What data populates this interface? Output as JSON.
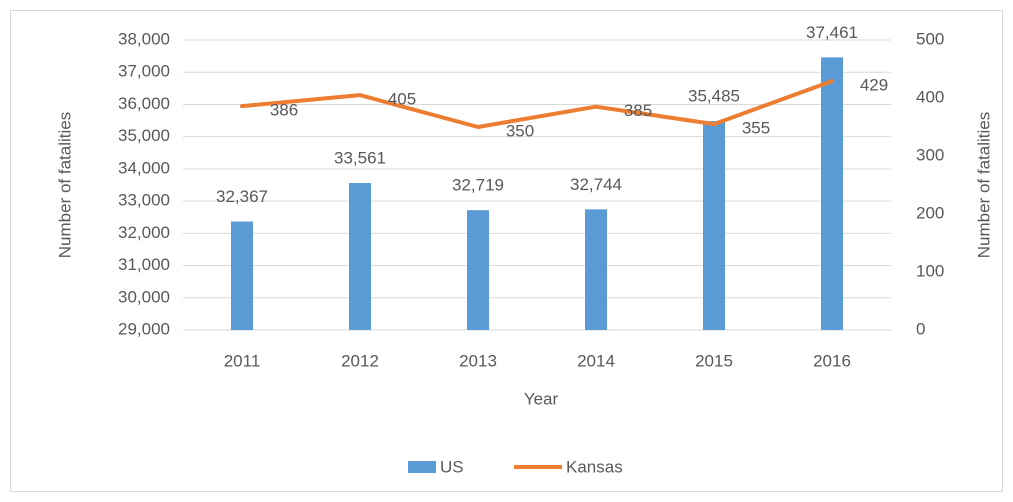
{
  "chart_data": {
    "type": "bar",
    "categories": [
      "2011",
      "2012",
      "2013",
      "2014",
      "2015",
      "2016"
    ],
    "x_label": "Year",
    "y_label": "Number of fatalities",
    "y2_label": "Number of fatalities",
    "ylim": [
      29000,
      38000
    ],
    "yticks": [
      {
        "value": 29000,
        "label": "29,000"
      },
      {
        "value": 30000,
        "label": "30,000"
      },
      {
        "value": 31000,
        "label": "31,000"
      },
      {
        "value": 32000,
        "label": "32,000"
      },
      {
        "value": 33000,
        "label": "33,000"
      },
      {
        "value": 34000,
        "label": "34,000"
      },
      {
        "value": 35000,
        "label": "35,000"
      },
      {
        "value": 36000,
        "label": "36,000"
      },
      {
        "value": 37000,
        "label": "37,000"
      },
      {
        "value": 38000,
        "label": "38,000"
      }
    ],
    "y2lim": [
      0,
      500
    ],
    "y2ticks": [
      0,
      100,
      200,
      300,
      400,
      500
    ],
    "grid": true,
    "legend": "bottom",
    "series": [
      {
        "name": "US",
        "type": "bar",
        "color": "#5b9bd5",
        "values": [
          32367,
          33561,
          32719,
          32744,
          35485,
          37461
        ],
        "value_labels": [
          "32,367",
          "33,561",
          "32,719",
          "32,744",
          "35,485",
          "37,461"
        ]
      },
      {
        "name": "Kansas",
        "type": "line",
        "axis": "y2",
        "color": "#ed7d31",
        "values": [
          386,
          405,
          350,
          385,
          355,
          429
        ]
      }
    ]
  }
}
